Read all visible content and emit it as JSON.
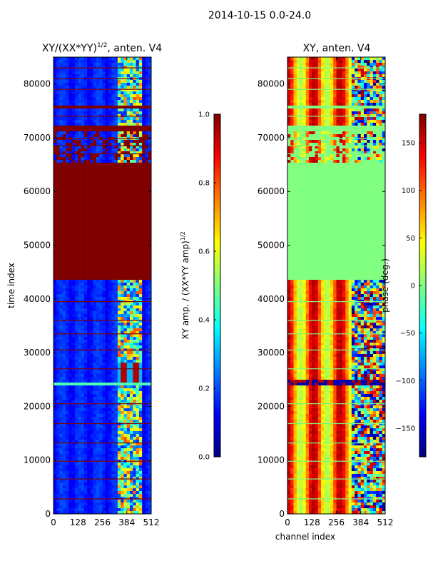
{
  "suptitle": "2014-10-15 0.0-24.0",
  "chart_data": [
    {
      "type": "heatmap",
      "title_main": "XY/(XX*YY)",
      "title_exponent": "1/2",
      "title_suffix": ", anten. V4",
      "ylabel": "time index",
      "xlabel": "",
      "xticks": [
        0,
        128,
        256,
        384,
        512
      ],
      "yticks": [
        0,
        10000,
        20000,
        30000,
        40000,
        50000,
        60000,
        70000,
        80000
      ],
      "xlim": [
        0,
        512
      ],
      "ylim": [
        0,
        85000
      ],
      "description_regions": [
        {
          "from": 0,
          "to": 43500,
          "level": 0.15,
          "note": "mostly low amplitude, noisy band at channels ~350-460"
        },
        {
          "from": 23800,
          "to": 24500,
          "level": 0.45,
          "note": "bright stripe"
        },
        {
          "from": 43500,
          "to": 65500,
          "level": 1.0,
          "note": "saturated (flagged)"
        },
        {
          "from": 65500,
          "to": 71500,
          "level": 0.2,
          "note": "mixed"
        },
        {
          "from": 71500,
          "to": 76000,
          "level": 0.2,
          "note": "mixed"
        },
        {
          "from": 76000,
          "to": 85000,
          "level": 0.15,
          "note": "low amplitude, upper part"
        }
      ],
      "colorbar": {
        "label_main": "XY amp. / (XX*YY amp)",
        "label_exponent": "1/2",
        "ticks": [
          0.0,
          0.2,
          0.4,
          0.6,
          0.8,
          1.0
        ],
        "tick_labels": [
          "0.0",
          "0.2",
          "0.4",
          "0.6",
          "0.8",
          "1.0"
        ],
        "range": [
          0.0,
          1.0
        ]
      }
    },
    {
      "type": "heatmap",
      "title_main": "XY, anten. V4",
      "ylabel": "",
      "xlabel": "channel index",
      "xticks": [
        0,
        128,
        256,
        384,
        512
      ],
      "yticks": [
        0,
        10000,
        20000,
        30000,
        40000,
        50000,
        60000,
        70000,
        80000
      ],
      "xlim": [
        0,
        512
      ],
      "ylim": [
        0,
        85000
      ],
      "colorbar": {
        "label_main": "phase (deg.)",
        "ticks": [
          -150,
          -100,
          -50,
          0,
          50,
          100,
          150
        ],
        "tick_labels": [
          "−150",
          "−100",
          "−50",
          "0",
          "50",
          "100",
          "150"
        ],
        "range": [
          -180,
          180
        ]
      }
    }
  ]
}
